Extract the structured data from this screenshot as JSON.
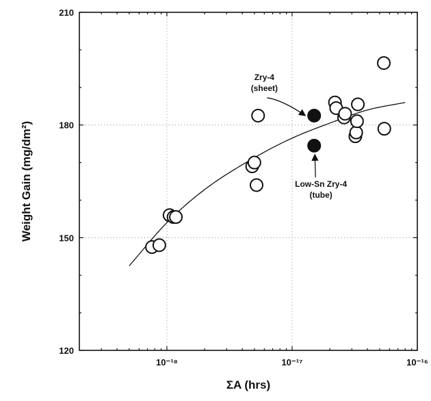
{
  "chart_data": {
    "type": "scatter",
    "title": "",
    "xlabel": "ΣA (hrs)",
    "ylabel": "Weight Gain (mg/dm²)",
    "x_scale": "log",
    "xlim": [
      2e-19,
      1e-16
    ],
    "ylim": [
      120,
      210
    ],
    "grid": true,
    "x_ticks": [
      {
        "value": 1e-18,
        "label": "10⁻¹⁸"
      },
      {
        "value": 1e-17,
        "label": "10⁻¹⁷"
      },
      {
        "value": 1e-16,
        "label": "10⁻¹⁶"
      }
    ],
    "y_ticks": [
      {
        "value": 120,
        "label": "120"
      },
      {
        "value": 150,
        "label": "150"
      },
      {
        "value": 180,
        "label": "180"
      },
      {
        "value": 210,
        "label": "210"
      }
    ],
    "series": [
      {
        "marker": "open-circle",
        "color": "#111111",
        "points": [
          {
            "x": 7.6e-19,
            "y": 147.5
          },
          {
            "x": 8.7e-19,
            "y": 148.0
          },
          {
            "x": 1.05e-18,
            "y": 156.0
          },
          {
            "x": 1.13e-18,
            "y": 155.5
          },
          {
            "x": 1.18e-18,
            "y": 155.5
          },
          {
            "x": 4.8e-18,
            "y": 169.0
          },
          {
            "x": 5e-18,
            "y": 170.0
          },
          {
            "x": 5.2e-18,
            "y": 164.0
          },
          {
            "x": 5.35e-18,
            "y": 182.5
          },
          {
            "x": 2.2e-17,
            "y": 186.0
          },
          {
            "x": 2.25e-17,
            "y": 184.5
          },
          {
            "x": 2.6e-17,
            "y": 182.0
          },
          {
            "x": 2.65e-17,
            "y": 183.0
          },
          {
            "x": 3.2e-17,
            "y": 177.0
          },
          {
            "x": 3.25e-17,
            "y": 178.0
          },
          {
            "x": 3.3e-17,
            "y": 181.0
          },
          {
            "x": 3.35e-17,
            "y": 185.5
          },
          {
            "x": 5.4e-17,
            "y": 196.5
          },
          {
            "x": 5.45e-17,
            "y": 179.0
          }
        ]
      },
      {
        "marker": "filled-circle",
        "color": "#111111",
        "points": [
          {
            "x": 1.5e-17,
            "y": 182.5
          },
          {
            "x": 1.5e-17,
            "y": 174.5
          }
        ]
      }
    ],
    "fit_curve": {
      "color": "#111111",
      "points": [
        {
          "x": 5e-19,
          "y": 142.5
        },
        {
          "x": 1e-18,
          "y": 154.0
        },
        {
          "x": 2e-18,
          "y": 162.8
        },
        {
          "x": 5e-18,
          "y": 171.3
        },
        {
          "x": 1e-17,
          "y": 176.5
        },
        {
          "x": 2e-17,
          "y": 180.5
        },
        {
          "x": 4e-17,
          "y": 184.0
        },
        {
          "x": 8e-17,
          "y": 186.0
        }
      ]
    },
    "annotations": [
      {
        "lines": [
          "Zry-4",
          "(sheet)"
        ],
        "x": 6e-18,
        "y": 192.0,
        "target_x": 1.5e-17,
        "target_y": 182.5
      },
      {
        "lines": [
          "Low-Sn Zry-4",
          "(tube)"
        ],
        "x": 1.7e-17,
        "y": 163.5,
        "target_x": 1.5e-17,
        "target_y": 174.5
      }
    ]
  }
}
